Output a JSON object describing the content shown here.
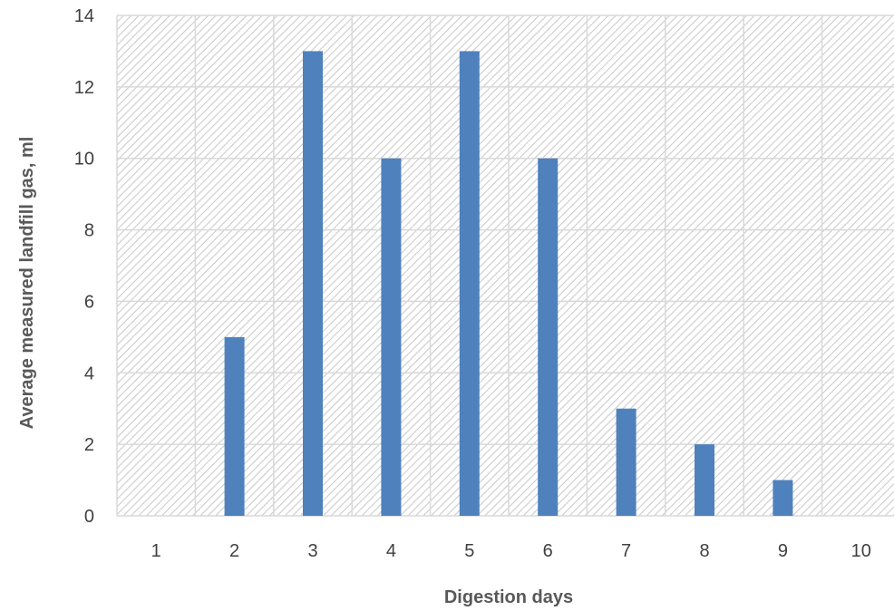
{
  "chart_data": {
    "type": "bar",
    "title": "",
    "xlabel": "Digestion days",
    "ylabel": "Average measured landfill gas, ml",
    "categories": [
      "1",
      "2",
      "3",
      "4",
      "5",
      "6",
      "7",
      "8",
      "9",
      "10"
    ],
    "values": [
      0,
      5,
      13,
      10,
      13,
      10,
      3,
      2,
      1,
      0
    ],
    "ylim": [
      0,
      14
    ],
    "yticks": [
      0,
      2,
      4,
      6,
      8,
      10,
      12,
      14
    ],
    "grid": true,
    "plot_background": "diagonal-hatch",
    "colors": {
      "bar": "#4f81bd",
      "grid": "#d9d9d9",
      "hatch": "#c8c8c8"
    }
  }
}
